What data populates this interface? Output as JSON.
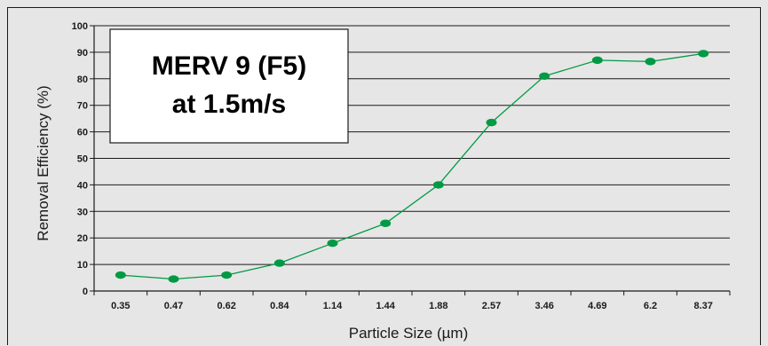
{
  "chart_data": {
    "type": "line",
    "title_lines": [
      "MERV 9 (F5)",
      "at 1.5m/s"
    ],
    "xlabel": "Particle Size (µm)",
    "ylabel": "Removal Efficiency (%)",
    "categories": [
      "0.35",
      "0.47",
      "0.62",
      "0.84",
      "1.14",
      "1.44",
      "1.88",
      "2.57",
      "3.46",
      "4.69",
      "6.2",
      "8.37"
    ],
    "series": [
      {
        "values": [
          6,
          4.5,
          6,
          10.5,
          18,
          25.5,
          40,
          63.5,
          81,
          87,
          86.5,
          89.5
        ]
      }
    ],
    "ylim": [
      0,
      100
    ],
    "yticks": [
      "0",
      "10",
      "20",
      "30",
      "40",
      "50",
      "60",
      "70",
      "80",
      "90",
      "100"
    ],
    "grid": true,
    "line_color": "#009a44",
    "marker_color": "#009a44"
  }
}
